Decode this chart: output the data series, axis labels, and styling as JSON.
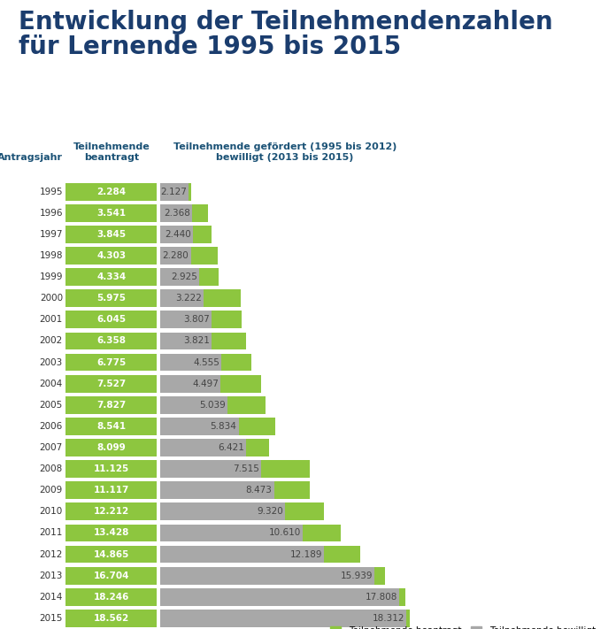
{
  "title_line1": "Entwicklung der Teilnehmendenzahlen",
  "title_line2": "für Lernende 1995 bis 2015",
  "title_color": "#1b3d6e",
  "title_fontsize": 20,
  "col_header_year": "Antragsjahr",
  "col_header_beantragt": "Teilnehmende\nbeantragt",
  "col_header_gefoerdert": "Teilnehmende gefördert (1995 bis 2012)\nbewilligt (2013 bis 2015)",
  "col_header_color": "#1b5276",
  "years": [
    1995,
    1996,
    1997,
    1998,
    1999,
    2000,
    2001,
    2002,
    2003,
    2004,
    2005,
    2006,
    2007,
    2008,
    2009,
    2010,
    2011,
    2012,
    2013,
    2014,
    2015
  ],
  "beantragt": [
    2284,
    3541,
    3845,
    4303,
    4334,
    5975,
    6045,
    6358,
    6775,
    7527,
    7827,
    8541,
    8099,
    11125,
    11117,
    12212,
    13428,
    14865,
    16704,
    18246,
    18562
  ],
  "bewilligt": [
    2127,
    2368,
    2440,
    2280,
    2925,
    3222,
    3807,
    3821,
    4555,
    4497,
    5039,
    5834,
    6421,
    7515,
    8473,
    9320,
    10610,
    12189,
    15939,
    17808,
    18312
  ],
  "beantragt_labels": [
    "2.284",
    "3.541",
    "3.845",
    "4.303",
    "4.334",
    "5.975",
    "6.045",
    "6.358",
    "6.775",
    "7.527",
    "7.827",
    "8.541",
    "8.099",
    "11.125",
    "11.117",
    "12.212",
    "13.428",
    "14.865",
    "16.704",
    "18.246",
    "18.562"
  ],
  "bewilligt_labels": [
    "2.127",
    "2.368",
    "2.440",
    "2.280",
    "2.925",
    "3.222",
    "3.807",
    "3.821",
    "4.555",
    "4.497",
    "5.039",
    "5.834",
    "6.421",
    "7.515",
    "8.473",
    "9.320",
    "10.610",
    "12.189",
    "15.939",
    "17.808",
    "18.312"
  ],
  "color_beantragt": "#8dc63f",
  "color_bewilligt": "#a8a8a8",
  "background_color": "#ffffff",
  "max_value": 18562,
  "legend_beantragt": "Teilnehmende beantragt",
  "legend_bewilligt": "Teilnehmende bewilligt"
}
